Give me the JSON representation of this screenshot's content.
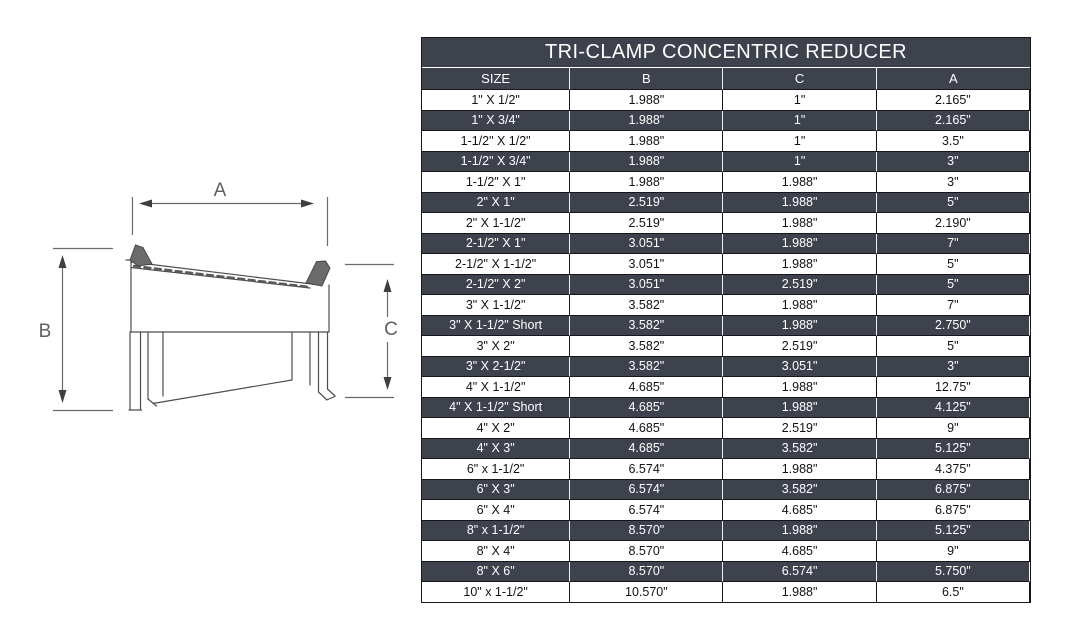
{
  "title": "TRI-CLAMP CONCENTRIC REDUCER",
  "diagram": {
    "labels": {
      "a": "A",
      "b": "B",
      "c": "C"
    }
  },
  "table": {
    "columns": [
      "SIZE",
      "B",
      "C",
      "A"
    ],
    "rows": [
      [
        "1\" X 1/2\"",
        "1.988\"",
        "1\"",
        "2.165\""
      ],
      [
        "1\" X 3/4\"",
        "1.988\"",
        "1\"",
        "2.165\""
      ],
      [
        "1-1/2\" X 1/2\"",
        "1.988\"",
        "1\"",
        "3.5\""
      ],
      [
        "1-1/2\" X 3/4\"",
        "1.988\"",
        "1\"",
        "3\""
      ],
      [
        "1-1/2\" X 1\"",
        "1.988\"",
        "1.988\"",
        "3\""
      ],
      [
        "2\" X 1\"",
        "2.519\"",
        "1.988\"",
        "5\""
      ],
      [
        "2\" X 1-1/2\"",
        "2.519\"",
        "1.988\"",
        "2.190\""
      ],
      [
        "2-1/2\" X 1\"",
        "3.051\"",
        "1.988\"",
        "7\""
      ],
      [
        "2-1/2\" X 1-1/2\"",
        "3.051\"",
        "1.988\"",
        "5\""
      ],
      [
        "2-1/2\" X 2\"",
        "3.051\"",
        "2.519\"",
        "5\""
      ],
      [
        "3\" X 1-1/2\"",
        "3.582\"",
        "1.988\"",
        "7\""
      ],
      [
        "3\" X 1-1/2\" Short",
        "3.582\"",
        "1.988\"",
        "2.750\""
      ],
      [
        "3\" X 2\"",
        "3.582\"",
        "2.519\"",
        "5\""
      ],
      [
        "3\" X 2-1/2\"",
        "3.582\"",
        "3.051\"",
        "3\""
      ],
      [
        "4\" X 1-1/2\"",
        "4.685\"",
        "1.988\"",
        "12.75\""
      ],
      [
        "4\" X 1-1/2\" Short",
        "4.685\"",
        "1.988\"",
        "4.125\""
      ],
      [
        "4\" X 2\"",
        "4.685\"",
        "2.519\"",
        "9\""
      ],
      [
        "4\" X 3\"",
        "4.685\"",
        "3.582\"",
        "5.125\""
      ],
      [
        "6\" x 1-1/2\"",
        "6.574\"",
        "1.988\"",
        "4.375\""
      ],
      [
        "6\" X 3\"",
        "6.574\"",
        "3.582\"",
        "6.875\""
      ],
      [
        "6\" X 4\"",
        "6.574\"",
        "4.685\"",
        "6.875\""
      ],
      [
        "8\" x 1-1/2\"",
        "8.570\"",
        "1.988\"",
        "5.125\""
      ],
      [
        "8\" X 4\"",
        "8.570\"",
        "4.685\"",
        "9\""
      ],
      [
        "8\" X 6\"",
        "8.570\"",
        "6.574\"",
        "5.750\""
      ],
      [
        "10\" x 1-1/2\"",
        "10.570\"",
        "1.988\"",
        "6.5\""
      ]
    ]
  },
  "colors": {
    "dark_row_bg": "#3e424d",
    "light_row_bg": "#ffffff",
    "grid_border": "#15171c",
    "header_text": "#ffffff",
    "body_text": "#121212"
  }
}
